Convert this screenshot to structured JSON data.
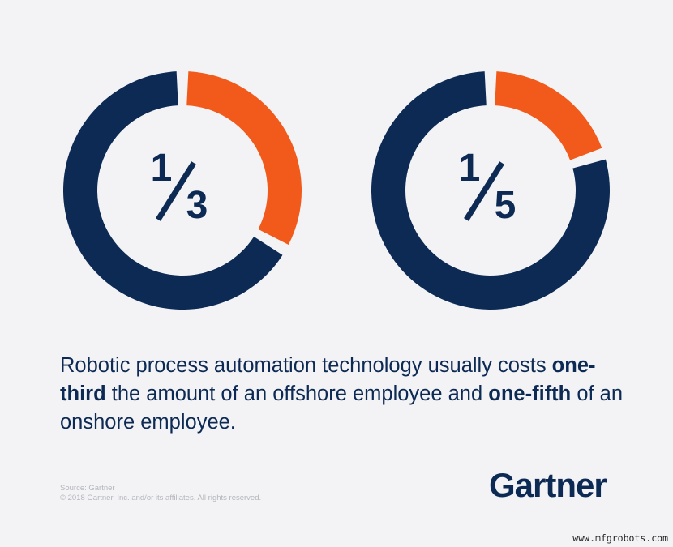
{
  "chart_data": [
    {
      "type": "pie",
      "numerator": "1",
      "denominator": "3",
      "values": [
        1,
        2
      ],
      "colors": [
        "#f15a1b",
        "#0c2a54"
      ]
    },
    {
      "type": "pie",
      "numerator": "1",
      "denominator": "5",
      "values": [
        1,
        4
      ],
      "colors": [
        "#f15a1b",
        "#0c2a54"
      ]
    }
  ],
  "caption": [
    {
      "text": "Robotic process automation technology usually costs ",
      "bold": false
    },
    {
      "text": "one-third",
      "bold": true
    },
    {
      "text": " the amount of an offshore employee and ",
      "bold": false
    },
    {
      "text": "one-fifth",
      "bold": true
    },
    {
      "text": " of an onshore employee.",
      "bold": false
    }
  ],
  "source": "Source: Gartner",
  "copyright": "© 2018 Gartner, Inc. and/or its affiliates. All rights reserved.",
  "logo": "Gartner",
  "watermark": "www.mfgrobots.com"
}
